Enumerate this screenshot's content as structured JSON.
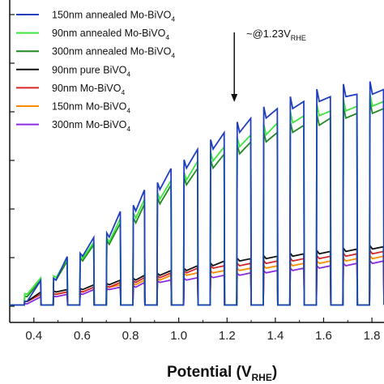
{
  "chart_data": {
    "type": "line",
    "xlabel": "Potential (V",
    "xlabel_sub": "RHE",
    "xlabel_close": ")",
    "x_ticks": [
      "0.4",
      "0.6",
      "0.8",
      "1.0",
      "1.2",
      "1.4",
      "1.6",
      "1.8"
    ],
    "x_tick_values": [
      0.4,
      0.6,
      0.8,
      1.0,
      1.2,
      1.4,
      1.6,
      1.8
    ],
    "xlim": [
      0.3,
      1.85
    ],
    "ylim": [
      0,
      1
    ],
    "grid": false,
    "legend_position": "top-left",
    "annotation": {
      "text": "~@1.23V",
      "sub": "RHE",
      "x": 1.23
    },
    "chop_off_start": [
      0.31,
      0.43,
      0.54,
      0.65,
      0.76,
      0.86,
      0.97,
      1.08,
      1.19,
      1.3,
      1.41,
      1.52,
      1.63,
      1.74
    ],
    "chop_on_start": [
      0.36,
      0.48,
      0.59,
      0.7,
      0.81,
      0.91,
      1.02,
      1.13,
      1.24,
      1.35,
      1.46,
      1.57,
      1.68,
      1.79
    ],
    "series": [
      {
        "name": "150nm annealed Mo-BiVO",
        "sub": "4",
        "color": "#1f3fbf",
        "peaks": [
          0.02,
          0.11,
          0.21,
          0.29,
          0.4,
          0.49,
          0.58,
          0.66,
          0.73,
          0.79,
          0.83,
          0.86,
          0.88,
          0.89,
          0.91,
          0.93
        ]
      },
      {
        "name": "90nm annealed Mo-BiVO",
        "sub": "4",
        "color": "#39e639",
        "peaks": [
          0.05,
          0.12,
          0.2,
          0.27,
          0.37,
          0.45,
          0.53,
          0.61,
          0.67,
          0.72,
          0.77,
          0.8,
          0.82,
          0.84,
          0.86,
          0.88
        ]
      },
      {
        "name": "300nm annealed Mo-BiVO",
        "sub": "4",
        "color": "#1f8a1f",
        "peaks": [
          0.04,
          0.11,
          0.19,
          0.26,
          0.35,
          0.43,
          0.51,
          0.58,
          0.64,
          0.69,
          0.73,
          0.76,
          0.79,
          0.81,
          0.83,
          0.85
        ]
      },
      {
        "name": "90nm pure BiVO",
        "sub": "4",
        "color": "#111111",
        "peaks": [
          0.02,
          0.06,
          0.07,
          0.09,
          0.11,
          0.13,
          0.15,
          0.17,
          0.19,
          0.2,
          0.21,
          0.22,
          0.23,
          0.24,
          0.25,
          0.26
        ]
      },
      {
        "name": "90nm Mo-BiVO",
        "sub": "4",
        "color": "#d62728",
        "peaks": [
          0.02,
          0.05,
          0.06,
          0.08,
          0.1,
          0.12,
          0.14,
          0.16,
          0.17,
          0.18,
          0.19,
          0.2,
          0.21,
          0.22,
          0.23,
          0.24
        ]
      },
      {
        "name": "150nm Mo-BiVO",
        "sub": "4",
        "color": "#ff8c00",
        "peaks": [
          0.02,
          0.05,
          0.06,
          0.08,
          0.09,
          0.11,
          0.13,
          0.14,
          0.15,
          0.16,
          0.17,
          0.18,
          0.19,
          0.2,
          0.21,
          0.22
        ]
      },
      {
        "name": "300nm Mo-BiVO",
        "sub": "4",
        "color": "#8a2be2",
        "peaks": [
          0.01,
          0.04,
          0.05,
          0.07,
          0.08,
          0.1,
          0.11,
          0.12,
          0.13,
          0.14,
          0.15,
          0.16,
          0.17,
          0.18,
          0.19,
          0.2
        ]
      }
    ]
  }
}
